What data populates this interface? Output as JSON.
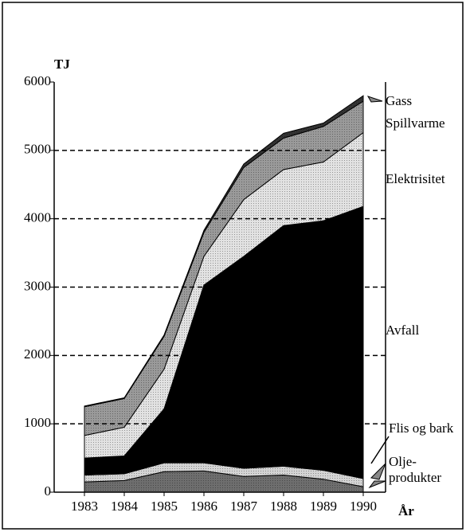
{
  "chart_data": {
    "type": "stacked-area",
    "y_label": "TJ",
    "x_label": "År",
    "categories": [
      "1983",
      "1984",
      "1985",
      "1986",
      "1987",
      "1988",
      "1989",
      "1990"
    ],
    "series": [
      {
        "name": "Olje-produkter",
        "color": "#6e6e6e",
        "values": [
          150,
          170,
          300,
          310,
          230,
          250,
          190,
          80
        ]
      },
      {
        "name": "Flis og bark",
        "color": "#d4d4d4",
        "values": [
          100,
          100,
          130,
          120,
          120,
          130,
          130,
          120
        ]
      },
      {
        "name": "Avfall",
        "color": "#000000",
        "values": [
          250,
          260,
          790,
          2600,
          3100,
          3520,
          3650,
          3980
        ]
      },
      {
        "name": "Elektrisitet",
        "color": "#e2e2e2",
        "values": [
          330,
          420,
          580,
          420,
          830,
          820,
          860,
          1080
        ]
      },
      {
        "name": "Spillvarme",
        "color": "#9a9a9a",
        "values": [
          420,
          420,
          480,
          350,
          470,
          460,
          520,
          460
        ]
      },
      {
        "name": "Gass",
        "color": "#333333",
        "values": [
          10,
          10,
          20,
          30,
          50,
          70,
          50,
          80
        ]
      }
    ],
    "ylim": [
      0,
      6000
    ],
    "yticks": [
      0,
      1000,
      2000,
      3000,
      4000,
      5000,
      6000
    ],
    "grid": true
  }
}
